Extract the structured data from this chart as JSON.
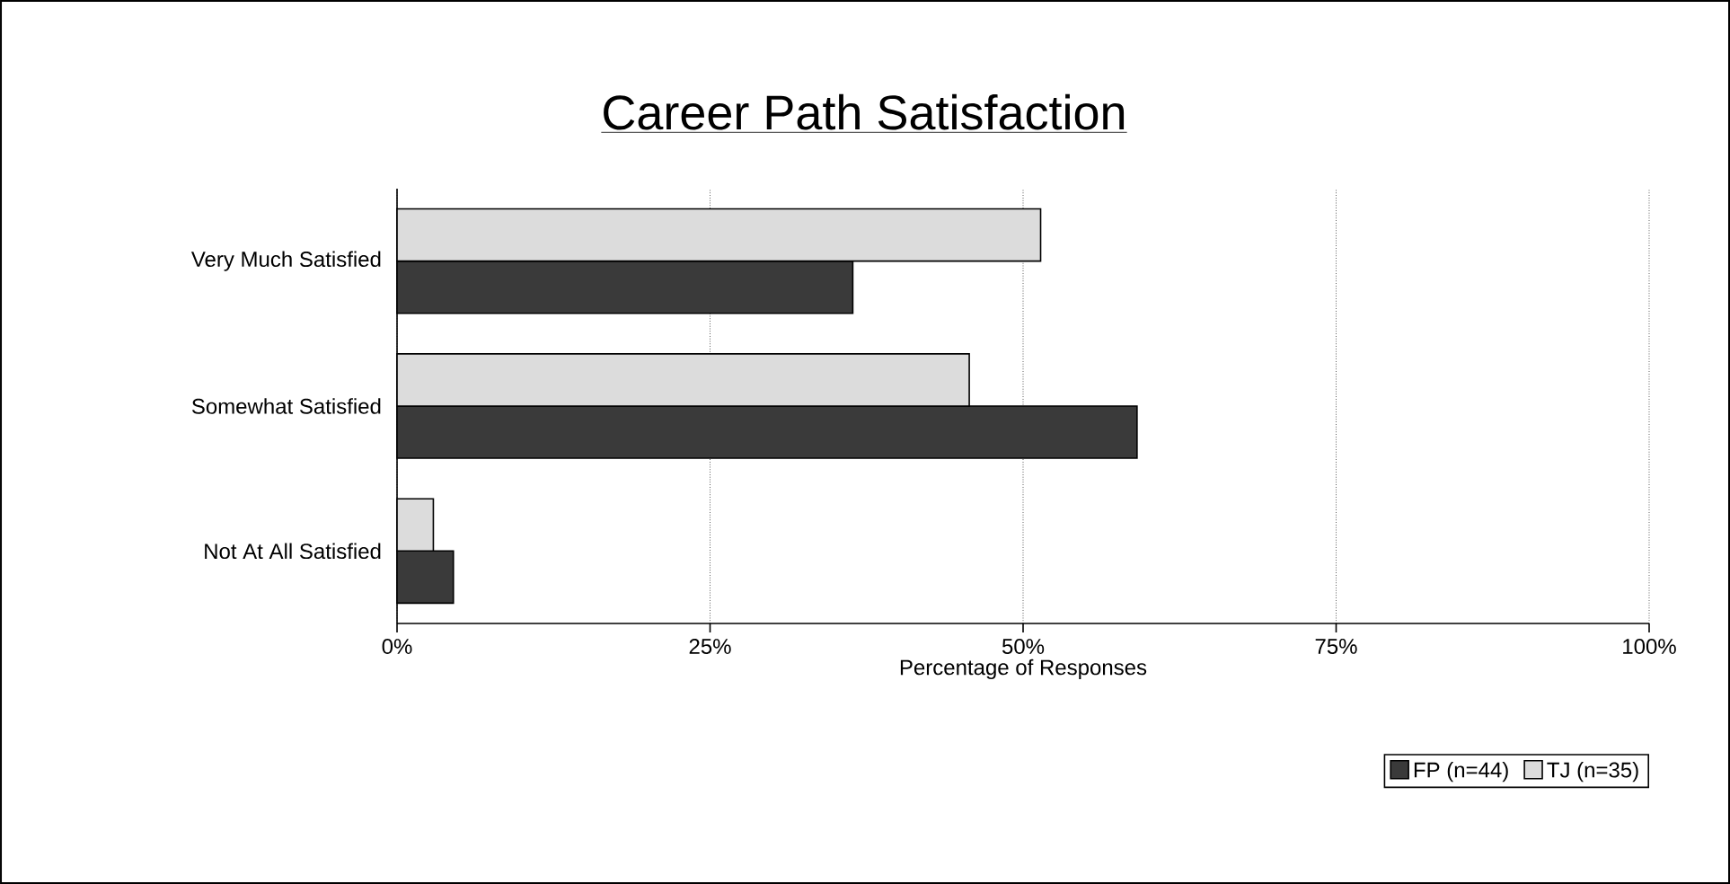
{
  "chart_data": {
    "type": "bar",
    "orientation": "horizontal",
    "title": "Career Path Satisfaction",
    "xlabel": "Percentage of Responses",
    "categories": [
      "Very Much Satisfied",
      "Somewhat Satisfied",
      "Not At All Satisfied"
    ],
    "series": [
      {
        "name": "FP (n=44)",
        "color": "#3a3a3a",
        "values": [
          36.4,
          59.1,
          4.5
        ]
      },
      {
        "name": "TJ (n=35)",
        "color": "#dcdcdc",
        "values": [
          51.4,
          45.7,
          2.9
        ]
      }
    ],
    "xlim": [
      0,
      100
    ],
    "xticks": [
      {
        "value": 0,
        "label": "0%"
      },
      {
        "value": 25,
        "label": "25%"
      },
      {
        "value": 50,
        "label": "50%"
      },
      {
        "value": 75,
        "label": "75%"
      },
      {
        "value": 100,
        "label": "100%"
      }
    ],
    "grid": "x",
    "legend": "bottom right"
  }
}
